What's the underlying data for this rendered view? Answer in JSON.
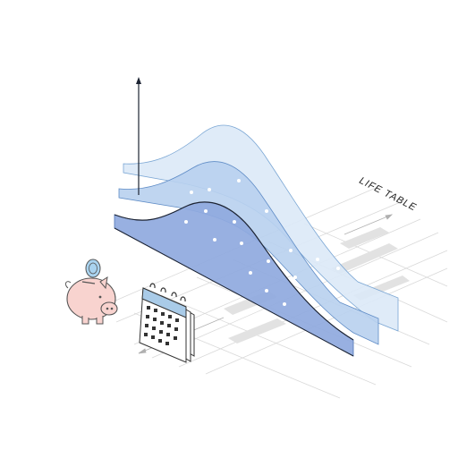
{
  "illustration": {
    "label": "LIFE TABLE",
    "colors": {
      "background": "#ffffff",
      "layer_back": "#dbe9f7",
      "layer_mid": "#b8d0ee",
      "layer_front": "#8fa9de",
      "outline": "#1d2433",
      "grid": "#d9d9d9",
      "grid_shadow": "#e2e2e2",
      "piggy_fill": "#f8d3cf",
      "piggy_stroke": "#555555",
      "coin": "#a9d3ef",
      "calendar_header": "#a9cbe8",
      "calendar_cells": "#333333"
    },
    "icons": [
      "piggy-bank-icon",
      "calendar-icon",
      "coin-icon",
      "arrow-up-icon"
    ]
  }
}
